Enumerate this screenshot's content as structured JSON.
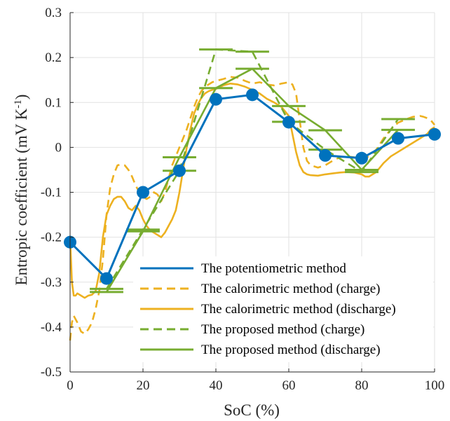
{
  "chart_data": {
    "type": "line",
    "xlabel": "SoC (%)",
    "ylabel": "Entropic coefficient (mV K",
    "ylabel_sup": "-1",
    "ylabel_close": ")",
    "xlim": [
      0,
      100
    ],
    "ylim": [
      -0.5,
      0.3
    ],
    "xticks": [
      0,
      20,
      40,
      60,
      80,
      100
    ],
    "xtick_labels": [
      "0",
      "20",
      "40",
      "60",
      "80",
      "100"
    ],
    "yticks": [
      -0.5,
      -0.4,
      -0.3,
      -0.2,
      -0.1,
      0,
      0.1,
      0.2,
      0.3
    ],
    "ytick_labels": [
      "-0.5",
      "-0.4",
      "-0.3",
      "-0.2",
      "-0.1",
      "0",
      "0.1",
      "0.2",
      "0.3"
    ],
    "grid": true,
    "legend_position": "bottom-right",
    "colors": {
      "blue": "#0072BD",
      "orange": "#EDB120",
      "green": "#77AC30"
    },
    "series": [
      {
        "name": "The potentiometric method",
        "color": "#0072BD",
        "style": "solid-markers",
        "x": [
          0,
          10,
          20,
          30,
          40,
          50,
          60,
          70,
          80,
          90,
          100
        ],
        "y": [
          -0.211,
          -0.292,
          -0.1,
          -0.052,
          0.107,
          0.117,
          0.056,
          -0.018,
          -0.024,
          0.02,
          0.029
        ]
      },
      {
        "name": "The calorimetric method (charge)",
        "color": "#EDB120",
        "style": "dashed",
        "x": [
          0,
          0.5,
          1,
          2,
          3,
          4,
          5,
          6,
          7,
          8,
          9,
          10,
          11,
          12,
          13,
          14,
          15,
          16,
          17,
          18,
          19,
          20,
          21,
          22,
          23,
          24,
          25,
          26,
          27,
          28,
          29,
          30,
          31,
          32,
          33,
          34,
          35,
          36,
          37,
          38,
          39,
          40,
          42,
          44,
          46,
          48,
          50,
          52,
          54,
          56,
          58,
          60,
          61,
          62,
          63,
          64,
          65,
          66,
          68,
          70,
          72,
          74,
          76,
          78,
          80,
          82,
          84,
          86,
          88,
          90,
          92,
          94,
          96,
          97,
          98,
          99,
          100
        ],
        "y": [
          -0.43,
          -0.39,
          -0.375,
          -0.39,
          -0.41,
          -0.415,
          -0.405,
          -0.39,
          -0.36,
          -0.32,
          -0.25,
          -0.15,
          -0.09,
          -0.06,
          -0.04,
          -0.038,
          -0.04,
          -0.05,
          -0.065,
          -0.085,
          -0.1,
          -0.11,
          -0.115,
          -0.11,
          -0.1,
          -0.105,
          -0.12,
          -0.1,
          -0.07,
          -0.04,
          -0.02,
          0.0,
          0.02,
          0.04,
          0.065,
          0.09,
          0.11,
          0.125,
          0.135,
          0.14,
          0.145,
          0.148,
          0.152,
          0.157,
          0.155,
          0.148,
          0.142,
          0.145,
          0.14,
          0.138,
          0.142,
          0.145,
          0.14,
          0.12,
          0.06,
          0.0,
          -0.03,
          -0.04,
          -0.045,
          -0.04,
          -0.03,
          -0.022,
          -0.02,
          -0.022,
          -0.025,
          -0.02,
          -0.005,
          0.02,
          0.04,
          0.055,
          0.062,
          0.068,
          0.07,
          0.068,
          0.065,
          0.06,
          0.05
        ]
      },
      {
        "name": "The calorimetric method (discharge)",
        "color": "#EDB120",
        "style": "solid",
        "x": [
          0,
          0.5,
          1,
          1.5,
          2,
          3,
          4,
          5,
          6,
          7,
          8,
          9,
          10,
          11,
          12,
          13,
          14,
          15,
          16,
          17,
          18,
          19,
          20,
          21,
          22,
          23,
          24,
          25,
          26,
          27,
          28,
          29,
          30,
          31,
          32,
          33,
          34,
          35,
          36,
          37,
          38,
          39,
          40,
          42,
          44,
          46,
          48,
          50,
          52,
          54,
          56,
          58,
          60,
          61,
          62,
          63,
          64,
          65,
          66,
          68,
          70,
          72,
          74,
          76,
          78,
          80,
          81,
          82,
          84,
          86,
          88,
          90,
          92,
          94,
          96,
          98,
          99,
          100
        ],
        "y": [
          -0.2,
          -0.3,
          -0.33,
          -0.33,
          -0.325,
          -0.33,
          -0.335,
          -0.33,
          -0.328,
          -0.32,
          -0.28,
          -0.2,
          -0.15,
          -0.13,
          -0.115,
          -0.11,
          -0.11,
          -0.12,
          -0.135,
          -0.14,
          -0.13,
          -0.14,
          -0.16,
          -0.175,
          -0.185,
          -0.19,
          -0.195,
          -0.2,
          -0.19,
          -0.175,
          -0.16,
          -0.14,
          -0.1,
          -0.05,
          0.0,
          0.04,
          0.075,
          0.095,
          0.11,
          0.12,
          0.125,
          0.128,
          0.13,
          0.138,
          0.142,
          0.14,
          0.135,
          0.128,
          0.12,
          0.108,
          0.1,
          0.09,
          0.07,
          0.03,
          -0.01,
          -0.04,
          -0.055,
          -0.06,
          -0.062,
          -0.063,
          -0.06,
          -0.058,
          -0.056,
          -0.055,
          -0.056,
          -0.06,
          -0.065,
          -0.065,
          -0.055,
          -0.035,
          -0.02,
          -0.01,
          0.0,
          0.01,
          0.02,
          0.03,
          0.04,
          0.045
        ]
      },
      {
        "name": "The proposed method (charge)",
        "color": "#77AC30",
        "style": "dashed-bars",
        "x": [
          10,
          20,
          30,
          40,
          50,
          60,
          70,
          80,
          90
        ],
        "y": [
          -0.315,
          -0.183,
          -0.052,
          0.218,
          0.213,
          0.057,
          -0.005,
          -0.055,
          0.063
        ]
      },
      {
        "name": "The proposed method (discharge)",
        "color": "#77AC30",
        "style": "solid-bars",
        "x": [
          10,
          20,
          30,
          40,
          50,
          60,
          70,
          80,
          90
        ],
        "y": [
          -0.322,
          -0.187,
          -0.022,
          0.132,
          0.175,
          0.092,
          0.038,
          -0.05,
          0.039
        ]
      }
    ]
  }
}
